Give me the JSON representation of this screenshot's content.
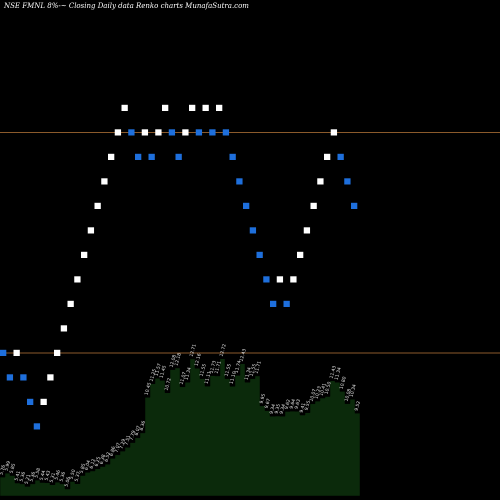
{
  "header": {
    "title": "NSE FMNL  8%-~  Closing Daily data  Renko  charts MunafaSutra.com"
  },
  "colors": {
    "background": "#000000",
    "up_brick": "#ffffff",
    "down_brick": "#1e6fdc",
    "resistance_line": "#8b5a2b",
    "volume_fill": "#0b2a0b",
    "label_text": "#e6e6e6"
  },
  "chart_data": {
    "type": "renko",
    "title": "NSE FMNL 8%-~ Closing Daily data Renko charts MunafaSutra.com",
    "y_range": [
      5,
      13
    ],
    "horizontal_lines": [
      11,
      7.4
    ],
    "bricks": [
      {
        "level": 7.4,
        "dir": "down"
      },
      {
        "level": 7.0,
        "dir": "down"
      },
      {
        "level": 7.4,
        "dir": "up"
      },
      {
        "level": 7.0,
        "dir": "down"
      },
      {
        "level": 6.6,
        "dir": "down"
      },
      {
        "level": 6.2,
        "dir": "down"
      },
      {
        "level": 6.6,
        "dir": "up"
      },
      {
        "level": 7.0,
        "dir": "up"
      },
      {
        "level": 7.4,
        "dir": "up"
      },
      {
        "level": 7.8,
        "dir": "up"
      },
      {
        "level": 8.2,
        "dir": "up"
      },
      {
        "level": 8.6,
        "dir": "up"
      },
      {
        "level": 9.0,
        "dir": "up"
      },
      {
        "level": 9.4,
        "dir": "up"
      },
      {
        "level": 9.8,
        "dir": "up"
      },
      {
        "level": 10.2,
        "dir": "up"
      },
      {
        "level": 10.6,
        "dir": "up"
      },
      {
        "level": 11.0,
        "dir": "up"
      },
      {
        "level": 11.4,
        "dir": "up"
      },
      {
        "level": 11.0,
        "dir": "down"
      },
      {
        "level": 10.6,
        "dir": "down"
      },
      {
        "level": 11.0,
        "dir": "up"
      },
      {
        "level": 10.6,
        "dir": "down"
      },
      {
        "level": 11.0,
        "dir": "up"
      },
      {
        "level": 11.4,
        "dir": "up"
      },
      {
        "level": 11.0,
        "dir": "down"
      },
      {
        "level": 10.6,
        "dir": "down"
      },
      {
        "level": 11.0,
        "dir": "up"
      },
      {
        "level": 11.4,
        "dir": "up"
      },
      {
        "level": 11.0,
        "dir": "down"
      },
      {
        "level": 11.4,
        "dir": "up"
      },
      {
        "level": 11.0,
        "dir": "down"
      },
      {
        "level": 11.4,
        "dir": "up"
      },
      {
        "level": 11.0,
        "dir": "down"
      },
      {
        "level": 10.6,
        "dir": "down"
      },
      {
        "level": 10.2,
        "dir": "down"
      },
      {
        "level": 9.8,
        "dir": "down"
      },
      {
        "level": 9.4,
        "dir": "down"
      },
      {
        "level": 9.0,
        "dir": "down"
      },
      {
        "level": 8.6,
        "dir": "down"
      },
      {
        "level": 8.2,
        "dir": "down"
      },
      {
        "level": 8.6,
        "dir": "up"
      },
      {
        "level": 8.2,
        "dir": "down"
      },
      {
        "level": 8.6,
        "dir": "up"
      },
      {
        "level": 9.0,
        "dir": "up"
      },
      {
        "level": 9.4,
        "dir": "up"
      },
      {
        "level": 9.8,
        "dir": "up"
      },
      {
        "level": 10.2,
        "dir": "up"
      },
      {
        "level": 10.6,
        "dir": "up"
      },
      {
        "level": 11.0,
        "dir": "up"
      },
      {
        "level": 10.6,
        "dir": "down"
      },
      {
        "level": 10.2,
        "dir": "down"
      },
      {
        "level": 9.8,
        "dir": "down"
      }
    ],
    "volume_labels": [
      "5.76",
      "5.99",
      "5.85",
      "5.41",
      "5.36",
      "5.21",
      "5.36",
      "5.58",
      "5.44",
      "5.43",
      "5.31",
      "5.46",
      "5.36",
      "5.06",
      "5.50",
      "5.37",
      "5.85",
      "6.04",
      "6.12",
      "6.25",
      "6.38",
      "6.52",
      "6.86",
      "7.07",
      "7.29",
      "7.51",
      "7.79",
      "8.07",
      "8.36",
      "10.45",
      "11.25",
      "11.57",
      "11.45",
      "10.72",
      "12.08",
      "12.18",
      "11.07",
      "11.34",
      "12.71",
      "12.16",
      "11.55",
      "11.11",
      "11.73",
      "11.71",
      "12.72",
      "11.55",
      "11.10",
      "11.74",
      "12.43",
      "11.34",
      "11.55",
      "11.71",
      "9.95",
      "9.67",
      "9.34",
      "9.35",
      "9.34",
      "9.62",
      "9.64",
      "9.63",
      "9.41",
      "9.55",
      "10.07",
      "10.23",
      "10.41",
      "10.50",
      "11.43",
      "11.34",
      "10.80",
      "10.08",
      "10.34",
      "9.52"
    ]
  }
}
